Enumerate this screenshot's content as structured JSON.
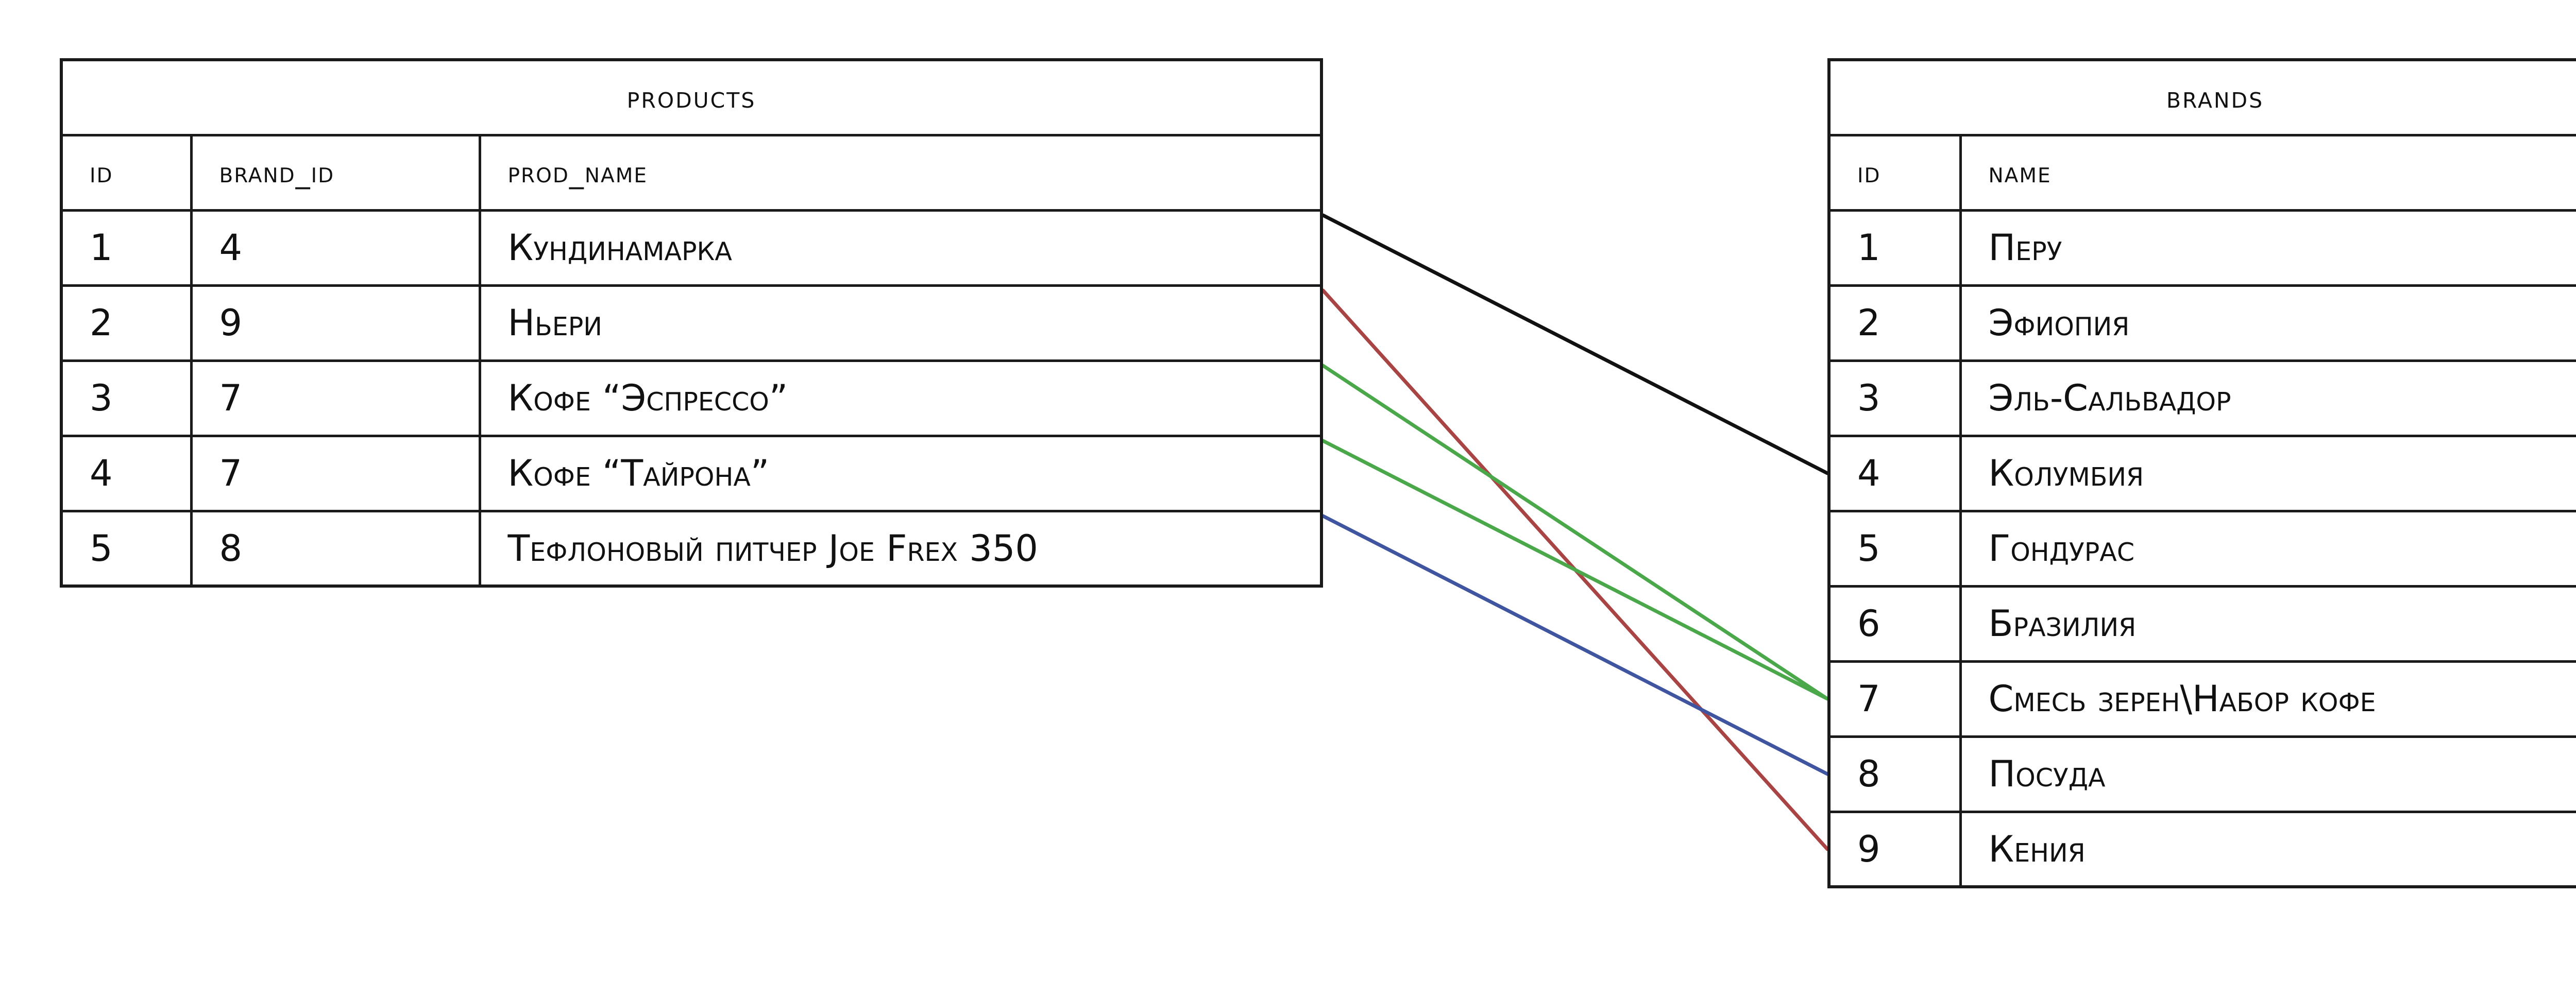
{
  "products": {
    "title": "products",
    "columns": [
      "id",
      "brand_id",
      "prod_name"
    ],
    "rows": [
      {
        "id": "1",
        "brand_id": "4",
        "prod_name": "Кундинамарка"
      },
      {
        "id": "2",
        "brand_id": "9",
        "prod_name": "Ньери"
      },
      {
        "id": "3",
        "brand_id": "7",
        "prod_name": "Кофе “Эспрессо”"
      },
      {
        "id": "4",
        "brand_id": "7",
        "prod_name": "Кофе “Тайрона”"
      },
      {
        "id": "5",
        "brand_id": "8",
        "prod_name": "Тефлоновый питчер Joe Frex 350"
      }
    ]
  },
  "brands": {
    "title": "brands",
    "columns": [
      "id",
      "name"
    ],
    "rows": [
      {
        "id": "1",
        "name": "Перу"
      },
      {
        "id": "2",
        "name": "Эфиопия"
      },
      {
        "id": "3",
        "name": "Эль-Сальвадор"
      },
      {
        "id": "4",
        "name": "Колумбия"
      },
      {
        "id": "5",
        "name": "Гондурас"
      },
      {
        "id": "6",
        "name": "Бразилия"
      },
      {
        "id": "7",
        "name": "Смесь зерен\\Набор кофе"
      },
      {
        "id": "8",
        "name": "Посуда"
      },
      {
        "id": "9",
        "name": "Кения"
      }
    ]
  },
  "relations": [
    {
      "product_id": "1",
      "brand_id": "4",
      "color": "#111111"
    },
    {
      "product_id": "2",
      "brand_id": "9",
      "color": "#a84444"
    },
    {
      "product_id": "3",
      "brand_id": "7",
      "color": "#4aa84a"
    },
    {
      "product_id": "4",
      "brand_id": "7",
      "color": "#4aa84a"
    },
    {
      "product_id": "5",
      "brand_id": "8",
      "color": "#4055a0"
    }
  ]
}
